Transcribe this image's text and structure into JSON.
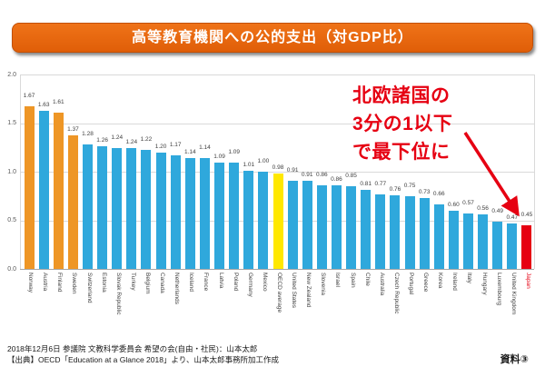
{
  "banner": {
    "title": "高等教育機関への公的支出（対GDP比）"
  },
  "annotation": {
    "text": "北欧諸国の\n3分の1以下\nで最下位に"
  },
  "footer": {
    "line1": "2018年12月6日 参議院 文教科学委員会 希望の会(自由・社民)：山本太郎",
    "line2": "【出典】OECD「Education at a Glance 2018」より、山本太郎事務所加工作成",
    "doc_label": "資料③"
  },
  "colors": {
    "bar_blue": "#2fa8dc",
    "bar_orange": "#ee9626",
    "bar_yellow": "#ffe800",
    "bar_red": "#e60012",
    "banner_orange": "#e4650f",
    "annotation_red": "#e60012",
    "grid": "#d9d9d9",
    "baseline": "#a6a6a6",
    "axis_text": "#595959",
    "value_label": "#404040"
  },
  "chart_data": {
    "type": "bar",
    "title": "高等教育機関への公的支出（対GDP比）",
    "xlabel": "",
    "ylabel": "",
    "ylim": [
      0,
      2.0
    ],
    "yticks": [
      0.0,
      0.5,
      1.0,
      1.5,
      2.0
    ],
    "grid": true,
    "legend": false,
    "annotations": [
      "北欧諸国の3分の1以下で最下位に"
    ],
    "categories": [
      "Norway",
      "Austria",
      "Finland",
      "Sweden",
      "Switzerland",
      "Estonia",
      "Slovak Republic",
      "Turkey",
      "Belgium",
      "Canada",
      "Netherlands",
      "Iceland",
      "France",
      "Latvia",
      "Poland",
      "Germany",
      "Mexico",
      "OECD average",
      "United States",
      "New Zealand",
      "Slovenia",
      "Israel",
      "Spain",
      "Chile",
      "Australia",
      "Czech Republic",
      "Portugal",
      "Greece",
      "Korea",
      "Ireland",
      "Italy",
      "Hungary",
      "Luxembourg",
      "United Kingdom",
      "Japan"
    ],
    "values": [
      1.67,
      1.63,
      1.61,
      1.37,
      1.28,
      1.26,
      1.24,
      1.24,
      1.22,
      1.2,
      1.17,
      1.14,
      1.14,
      1.09,
      1.09,
      1.01,
      1.0,
      0.98,
      0.91,
      0.91,
      0.86,
      0.86,
      0.85,
      0.81,
      0.77,
      0.76,
      0.75,
      0.73,
      0.66,
      0.6,
      0.57,
      0.56,
      0.49,
      0.47,
      0.45
    ],
    "bar_colors": [
      "orange",
      "blue",
      "orange",
      "orange",
      "blue",
      "blue",
      "blue",
      "blue",
      "blue",
      "blue",
      "blue",
      "blue",
      "blue",
      "blue",
      "blue",
      "blue",
      "blue",
      "yellow",
      "blue",
      "blue",
      "blue",
      "blue",
      "blue",
      "blue",
      "blue",
      "blue",
      "blue",
      "blue",
      "blue",
      "blue",
      "blue",
      "blue",
      "blue",
      "blue",
      "red"
    ]
  }
}
